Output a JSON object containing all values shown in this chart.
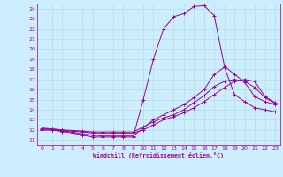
{
  "xlabel": "Windchill (Refroidissement éolien,°C)",
  "bg_color": "#cceeff",
  "grid_color": "#b8ddd8",
  "line_color": "#990099",
  "marker": "+",
  "xlim": [
    -0.5,
    23.5
  ],
  "ylim": [
    10.5,
    24.5
  ],
  "xticks": [
    0,
    1,
    2,
    3,
    4,
    5,
    6,
    7,
    8,
    9,
    10,
    11,
    12,
    13,
    14,
    15,
    16,
    17,
    18,
    19,
    20,
    21,
    22,
    23
  ],
  "yticks": [
    11,
    12,
    13,
    14,
    15,
    16,
    17,
    18,
    19,
    20,
    21,
    22,
    23,
    24
  ],
  "lines": [
    {
      "x": [
        0,
        1,
        2,
        3,
        4,
        5,
        6,
        7,
        8,
        9,
        10,
        11,
        12,
        13,
        14,
        15,
        16,
        17,
        18,
        19,
        20,
        21,
        22,
        23
      ],
      "y": [
        12.0,
        12.0,
        11.85,
        11.7,
        11.5,
        11.3,
        11.3,
        11.3,
        11.3,
        11.3,
        15.0,
        19.0,
        22.0,
        23.2,
        23.5,
        24.2,
        24.3,
        23.3,
        18.3,
        17.5,
        16.7,
        15.3,
        14.8,
        14.5
      ]
    },
    {
      "x": [
        0,
        1,
        2,
        3,
        4,
        5,
        6,
        7,
        8,
        9,
        10,
        11,
        12,
        13,
        14,
        15,
        16,
        17,
        18,
        19,
        20,
        21,
        22,
        23
      ],
      "y": [
        12.1,
        12.1,
        12.0,
        11.9,
        11.8,
        11.7,
        11.7,
        11.7,
        11.7,
        11.7,
        12.0,
        12.5,
        13.0,
        13.3,
        13.7,
        14.2,
        14.8,
        15.5,
        16.2,
        16.8,
        17.0,
        16.8,
        15.3,
        14.7
      ]
    },
    {
      "x": [
        0,
        1,
        2,
        3,
        4,
        5,
        6,
        7,
        8,
        9,
        10,
        11,
        12,
        13,
        14,
        15,
        16,
        17,
        18,
        19,
        20,
        21,
        22,
        23
      ],
      "y": [
        12.0,
        12.0,
        11.9,
        11.8,
        11.6,
        11.5,
        11.4,
        11.4,
        11.4,
        11.4,
        12.2,
        13.0,
        13.5,
        14.0,
        14.5,
        15.2,
        16.0,
        17.5,
        18.2,
        15.5,
        14.8,
        14.2,
        14.0,
        13.8
      ]
    },
    {
      "x": [
        0,
        1,
        2,
        3,
        4,
        5,
        6,
        7,
        8,
        9,
        10,
        11,
        12,
        13,
        14,
        15,
        16,
        17,
        18,
        19,
        20,
        21,
        22,
        23
      ],
      "y": [
        12.2,
        12.1,
        12.0,
        11.95,
        11.9,
        11.8,
        11.8,
        11.8,
        11.8,
        11.8,
        12.3,
        12.8,
        13.2,
        13.5,
        14.0,
        14.7,
        15.4,
        16.3,
        16.8,
        17.0,
        16.8,
        16.2,
        15.2,
        14.6
      ]
    }
  ]
}
